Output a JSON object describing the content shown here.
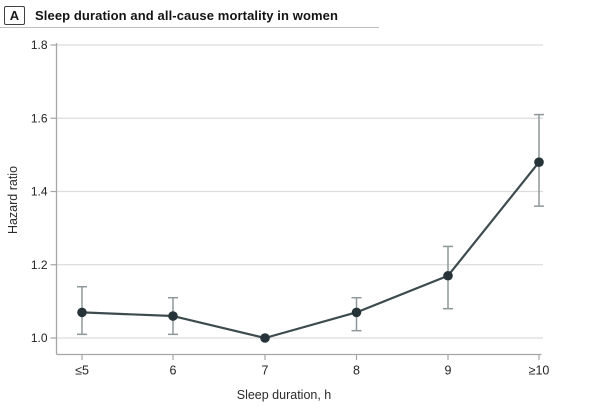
{
  "header": {
    "panel_label": "A",
    "title": "Sleep duration and all-cause mortality in women"
  },
  "chart_data": {
    "type": "line",
    "title": "Sleep duration and all-cause mortality in women",
    "panel_label": "A",
    "categories": [
      "≤5",
      "6",
      "7",
      "8",
      "9",
      "≥10"
    ],
    "series": [
      {
        "name": "Hazard ratio",
        "values": [
          1.07,
          1.06,
          1.0,
          1.07,
          1.17,
          1.48
        ],
        "ci_low": [
          1.01,
          1.01,
          null,
          1.02,
          1.08,
          1.36
        ],
        "ci_high": [
          1.14,
          1.11,
          null,
          1.11,
          1.25,
          1.61
        ]
      }
    ],
    "reference_category": "7",
    "xlabel": "Sleep duration, h",
    "ylabel": "Hazard ratio",
    "ylim": [
      1.0,
      1.8
    ],
    "yticks": [
      1.0,
      1.2,
      1.4,
      1.6,
      1.8
    ],
    "ytick_labels": [
      "1.0",
      "1.2",
      "1.4",
      "1.6",
      "1.8"
    ],
    "grid": true,
    "legend": "none",
    "colors": {
      "line": "#3d4b4f",
      "marker": "#26343a",
      "error_bar": "#8e9898",
      "gridline": "#dcdcdc",
      "spine": "#a6a6a6",
      "tick_text": "#242424",
      "title_text": "#141414",
      "rule": "#bdbdbd"
    }
  }
}
